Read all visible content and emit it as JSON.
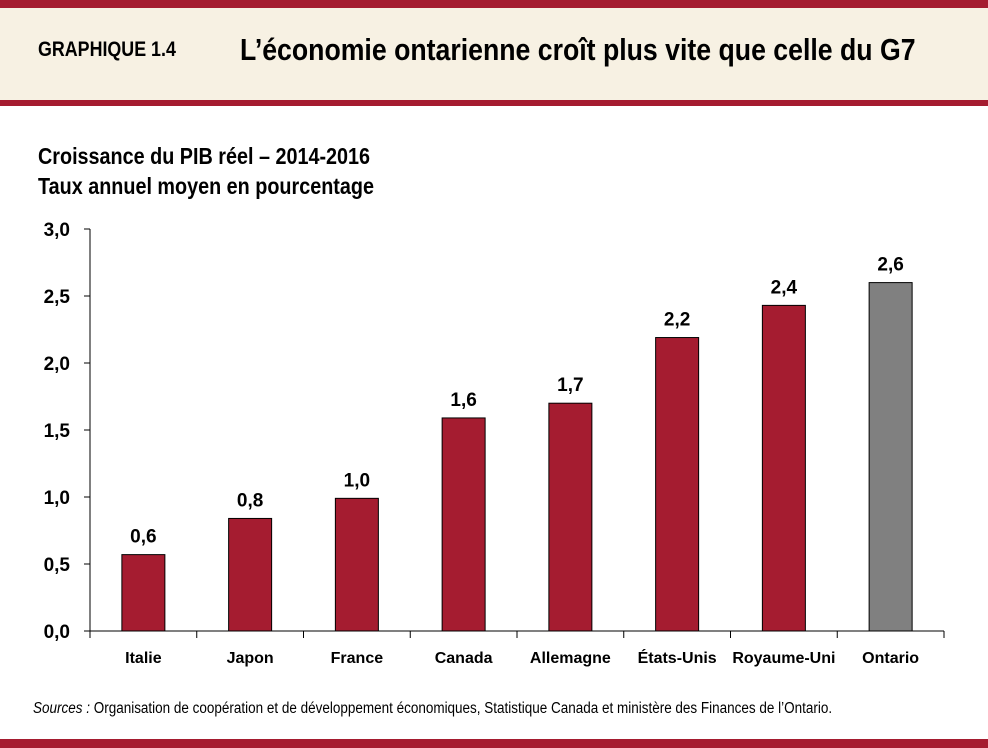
{
  "header": {
    "label": "GRAPHIQUE 1.4",
    "title": "L’économie ontarienne croît plus vite que celle du G7"
  },
  "colors": {
    "accent": "#a51c30",
    "header_bg": "#f7f1e3",
    "bar": "#a51c30",
    "highlight_bar": "#808080"
  },
  "chart_data": {
    "type": "bar",
    "subtitle_1": "Croissance du PIB réel – 2014-2016",
    "subtitle_2": "Taux annuel moyen en pourcentage",
    "categories": [
      "Italie",
      "Japon",
      "France",
      "Canada",
      "Allemagne",
      "États-Unis",
      "Royaume-Uni",
      "Ontario"
    ],
    "values": [
      0.57,
      0.84,
      0.99,
      1.59,
      1.7,
      2.19,
      2.43,
      2.6
    ],
    "data_labels": [
      "0,6",
      "0,8",
      "1,0",
      "1,6",
      "1,7",
      "2,2",
      "2,4",
      "2,6"
    ],
    "highlight": "Ontario",
    "ylim": [
      0,
      3.0
    ],
    "yticks": [
      "0,0",
      "0,5",
      "1,0",
      "1,5",
      "2,0",
      "2,5",
      "3,0"
    ],
    "grid": false
  },
  "source": {
    "prefix": "Sources :",
    "text": " Organisation de coopération et de développement économiques, Statistique  Canada et ministère des Finances de l’Ontario."
  }
}
